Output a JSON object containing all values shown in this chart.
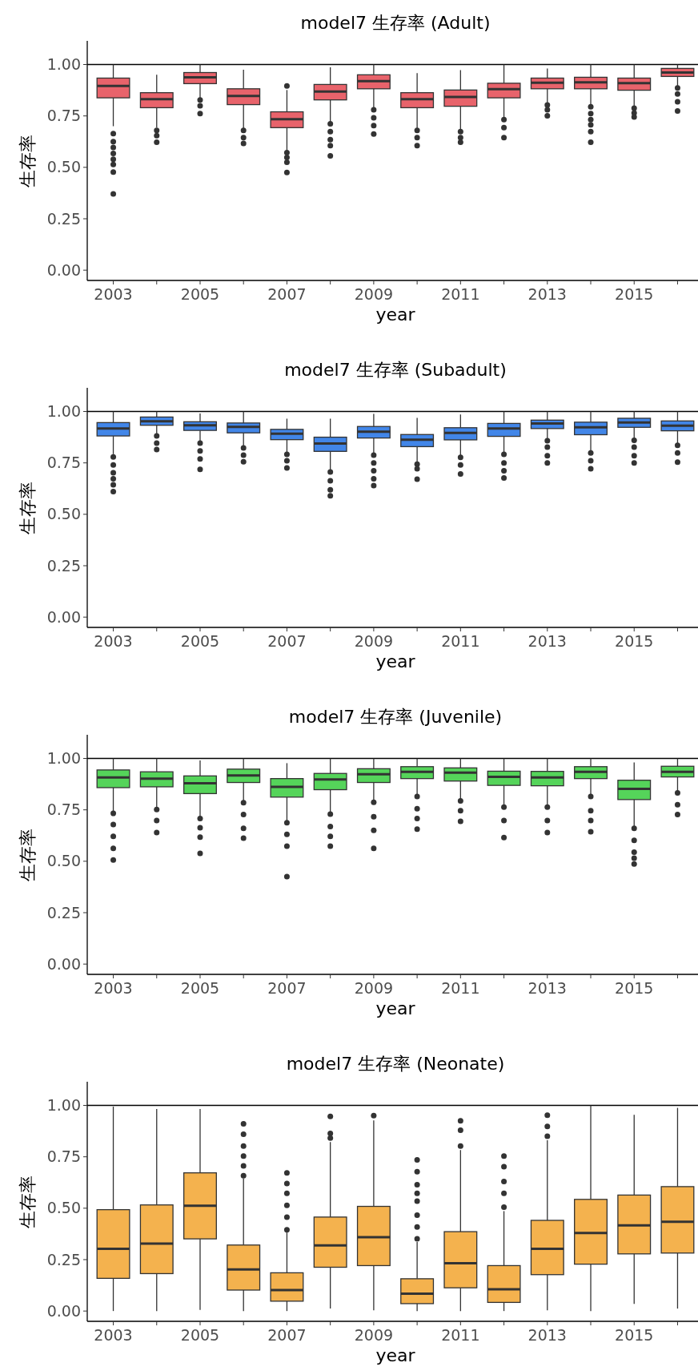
{
  "chart_data": [
    {
      "type": "box",
      "title": "model7 生存率 (Adult)",
      "xlabel": "year",
      "ylabel": "生存率",
      "categories": [
        "2003",
        null,
        "2005",
        null,
        "2007",
        null,
        "2009",
        null,
        "2011",
        null,
        "2013",
        null,
        "2015",
        null
      ],
      "color": "#e8636b",
      "ylim": [
        -0.05,
        1.115
      ],
      "yticks": [
        {
          "value": 0,
          "label": "0.00"
        },
        {
          "value": 0.25,
          "label": "0.25"
        },
        {
          "value": 0.5,
          "label": "0.50"
        },
        {
          "value": 0.75,
          "label": "0.75"
        },
        {
          "value": 1,
          "label": "1.00"
        }
      ],
      "grid": false,
      "ref_lines": [
        {
          "axis": "y",
          "value": 1,
          "color": "#000000"
        }
      ],
      "boxes": [
        {
          "low": 0.7,
          "q1": 0.838,
          "median": 0.896,
          "q3": 0.934,
          "high": 1.0,
          "outliers": [
            0.664,
            0.625,
            0.597,
            0.568,
            0.539,
            0.514,
            0.477,
            0.371
          ]
        },
        {
          "low": 0.693,
          "q1": 0.79,
          "median": 0.832,
          "q3": 0.863,
          "high": 0.95,
          "outliers": [
            0.68,
            0.654,
            0.622
          ]
        },
        {
          "low": 0.838,
          "q1": 0.907,
          "median": 0.938,
          "q3": 0.961,
          "high": 1.0,
          "outliers": [
            0.828,
            0.799,
            0.761
          ]
        },
        {
          "low": 0.687,
          "q1": 0.805,
          "median": 0.847,
          "q3": 0.882,
          "high": 0.975,
          "outliers": [
            0.68,
            0.645,
            0.616
          ]
        },
        {
          "low": 0.581,
          "q1": 0.693,
          "median": 0.734,
          "q3": 0.77,
          "high": 0.876,
          "outliers": [
            0.896,
            0.571,
            0.548,
            0.525,
            0.475
          ]
        },
        {
          "low": 0.722,
          "q1": 0.828,
          "median": 0.869,
          "q3": 0.903,
          "high": 0.986,
          "outliers": [
            0.712,
            0.674,
            0.635,
            0.606,
            0.556
          ]
        },
        {
          "low": 0.79,
          "q1": 0.882,
          "median": 0.919,
          "q3": 0.95,
          "high": 1.0,
          "outliers": [
            0.78,
            0.741,
            0.703,
            0.662
          ]
        },
        {
          "low": 0.687,
          "q1": 0.79,
          "median": 0.832,
          "q3": 0.863,
          "high": 0.958,
          "outliers": [
            0.68,
            0.645,
            0.606
          ]
        },
        {
          "low": 0.683,
          "q1": 0.797,
          "median": 0.842,
          "q3": 0.876,
          "high": 0.973,
          "outliers": [
            0.674,
            0.645,
            0.622
          ]
        },
        {
          "low": 0.736,
          "q1": 0.838,
          "median": 0.88,
          "q3": 0.909,
          "high": 1.0,
          "outliers": [
            0.732,
            0.693,
            0.645
          ]
        },
        {
          "low": 0.813,
          "q1": 0.882,
          "median": 0.911,
          "q3": 0.934,
          "high": 0.981,
          "outliers": [
            0.803,
            0.78,
            0.751
          ]
        },
        {
          "low": 0.805,
          "q1": 0.882,
          "median": 0.913,
          "q3": 0.938,
          "high": 1.0,
          "outliers": [
            0.795,
            0.761,
            0.732,
            0.707,
            0.674,
            0.622
          ]
        },
        {
          "low": 0.793,
          "q1": 0.875,
          "median": 0.909,
          "q3": 0.934,
          "high": 1.0,
          "outliers": [
            0.788,
            0.764,
            0.745
          ]
        },
        {
          "low": 0.896,
          "q1": 0.942,
          "median": 0.961,
          "q3": 0.981,
          "high": 1.0,
          "outliers": [
            0.886,
            0.857,
            0.819,
            0.774
          ]
        }
      ]
    },
    {
      "type": "box",
      "title": "model7 生存率 (Subadult)",
      "xlabel": "year",
      "ylabel": "生存率",
      "categories": [
        "2003",
        null,
        "2005",
        null,
        "2007",
        null,
        "2009",
        null,
        "2011",
        null,
        "2013",
        null,
        "2015",
        null
      ],
      "color": "#4286e8",
      "ylim": [
        -0.05,
        1.115
      ],
      "yticks": [
        {
          "value": 0,
          "label": "0.00"
        },
        {
          "value": 0.25,
          "label": "0.25"
        },
        {
          "value": 0.5,
          "label": "0.50"
        },
        {
          "value": 0.75,
          "label": "0.75"
        },
        {
          "value": 1,
          "label": "1.00"
        }
      ],
      "grid": false,
      "ref_lines": [
        {
          "axis": "y",
          "value": 1,
          "color": "#000000"
        }
      ],
      "boxes": [
        {
          "low": 0.792,
          "q1": 0.881,
          "median": 0.917,
          "q3": 0.946,
          "high": 1.0,
          "outliers": [
            0.779,
            0.74,
            0.702,
            0.673,
            0.644,
            0.61
          ]
        },
        {
          "low": 0.888,
          "q1": 0.933,
          "median": 0.952,
          "q3": 0.973,
          "high": 1.0,
          "outliers": [
            0.881,
            0.846,
            0.815
          ]
        },
        {
          "low": 0.856,
          "q1": 0.908,
          "median": 0.933,
          "q3": 0.95,
          "high": 0.99,
          "outliers": [
            0.846,
            0.808,
            0.769,
            0.719
          ]
        },
        {
          "low": 0.831,
          "q1": 0.896,
          "median": 0.925,
          "q3": 0.944,
          "high": 1.0,
          "outliers": [
            0.823,
            0.788,
            0.756
          ]
        },
        {
          "low": 0.798,
          "q1": 0.863,
          "median": 0.892,
          "q3": 0.913,
          "high": 0.965,
          "outliers": [
            0.792,
            0.76,
            0.725
          ]
        },
        {
          "low": 0.715,
          "q1": 0.806,
          "median": 0.844,
          "q3": 0.875,
          "high": 0.965,
          "outliers": [
            0.706,
            0.663,
            0.619,
            0.59
          ]
        },
        {
          "low": 0.796,
          "q1": 0.871,
          "median": 0.902,
          "q3": 0.927,
          "high": 0.988,
          "outliers": [
            0.788,
            0.75,
            0.712,
            0.673,
            0.64
          ]
        },
        {
          "low": 0.75,
          "q1": 0.829,
          "median": 0.863,
          "q3": 0.888,
          "high": 0.969,
          "outliers": [
            0.744,
            0.721,
            0.671
          ]
        },
        {
          "low": 0.783,
          "q1": 0.862,
          "median": 0.896,
          "q3": 0.921,
          "high": 0.985,
          "outliers": [
            0.777,
            0.74,
            0.696
          ]
        },
        {
          "low": 0.796,
          "q1": 0.879,
          "median": 0.917,
          "q3": 0.942,
          "high": 1.0,
          "outliers": [
            0.792,
            0.75,
            0.712,
            0.677
          ]
        },
        {
          "low": 0.863,
          "q1": 0.917,
          "median": 0.942,
          "q3": 0.958,
          "high": 1.0,
          "outliers": [
            0.858,
            0.827,
            0.785,
            0.75
          ]
        },
        {
          "low": 0.804,
          "q1": 0.887,
          "median": 0.923,
          "q3": 0.948,
          "high": 1.0,
          "outliers": [
            0.798,
            0.76,
            0.721
          ]
        },
        {
          "low": 0.865,
          "q1": 0.923,
          "median": 0.946,
          "q3": 0.967,
          "high": 1.0,
          "outliers": [
            0.86,
            0.827,
            0.785,
            0.75
          ]
        },
        {
          "low": 0.84,
          "q1": 0.906,
          "median": 0.931,
          "q3": 0.954,
          "high": 1.0,
          "outliers": [
            0.835,
            0.798,
            0.754
          ]
        }
      ]
    },
    {
      "type": "box",
      "title": "model7 生存率 (Juvenile)",
      "xlabel": "year",
      "ylabel": "生存率",
      "categories": [
        "2003",
        null,
        "2005",
        null,
        "2007",
        null,
        "2009",
        null,
        "2011",
        null,
        "2013",
        null,
        "2015",
        null
      ],
      "color": "#55d45a",
      "ylim": [
        -0.05,
        1.115
      ],
      "yticks": [
        {
          "value": 0,
          "label": "0.00"
        },
        {
          "value": 0.25,
          "label": "0.25"
        },
        {
          "value": 0.5,
          "label": "0.50"
        },
        {
          "value": 0.75,
          "label": "0.75"
        },
        {
          "value": 1,
          "label": "1.00"
        }
      ],
      "grid": false,
      "ref_lines": [
        {
          "axis": "y",
          "value": 1,
          "color": "#000000"
        }
      ],
      "boxes": [
        {
          "low": 0.74,
          "q1": 0.858,
          "median": 0.908,
          "q3": 0.944,
          "high": 1.0,
          "outliers": [
            0.733,
            0.679,
            0.621,
            0.563,
            0.506
          ]
        },
        {
          "low": 0.76,
          "q1": 0.862,
          "median": 0.902,
          "q3": 0.935,
          "high": 1.0,
          "outliers": [
            0.752,
            0.698,
            0.64
          ]
        },
        {
          "low": 0.713,
          "q1": 0.829,
          "median": 0.879,
          "q3": 0.915,
          "high": 0.99,
          "outliers": [
            0.708,
            0.663,
            0.617,
            0.538
          ]
        },
        {
          "low": 0.79,
          "q1": 0.883,
          "median": 0.917,
          "q3": 0.948,
          "high": 1.0,
          "outliers": [
            0.785,
            0.727,
            0.66,
            0.612
          ]
        },
        {
          "low": 0.694,
          "q1": 0.812,
          "median": 0.862,
          "q3": 0.902,
          "high": 0.977,
          "outliers": [
            0.687,
            0.631,
            0.573,
            0.425
          ]
        },
        {
          "low": 0.737,
          "q1": 0.848,
          "median": 0.898,
          "q3": 0.927,
          "high": 1.0,
          "outliers": [
            0.729,
            0.669,
            0.621,
            0.573
          ]
        },
        {
          "low": 0.794,
          "q1": 0.883,
          "median": 0.923,
          "q3": 0.95,
          "high": 1.0,
          "outliers": [
            0.787,
            0.717,
            0.65,
            0.563
          ]
        },
        {
          "low": 0.821,
          "q1": 0.902,
          "median": 0.935,
          "q3": 0.96,
          "high": 1.0,
          "outliers": [
            0.815,
            0.756,
            0.708,
            0.656
          ]
        },
        {
          "low": 0.802,
          "q1": 0.89,
          "median": 0.931,
          "q3": 0.954,
          "high": 1.0,
          "outliers": [
            0.794,
            0.746,
            0.694
          ]
        },
        {
          "low": 0.771,
          "q1": 0.869,
          "median": 0.91,
          "q3": 0.938,
          "high": 1.0,
          "outliers": [
            0.763,
            0.698,
            0.615
          ]
        },
        {
          "low": 0.771,
          "q1": 0.867,
          "median": 0.908,
          "q3": 0.937,
          "high": 1.0,
          "outliers": [
            0.763,
            0.698,
            0.64
          ]
        },
        {
          "low": 0.821,
          "q1": 0.902,
          "median": 0.935,
          "q3": 0.96,
          "high": 1.0,
          "outliers": [
            0.815,
            0.746,
            0.698,
            0.644
          ]
        },
        {
          "low": 0.667,
          "q1": 0.8,
          "median": 0.852,
          "q3": 0.894,
          "high": 0.981,
          "outliers": [
            0.66,
            0.602,
            0.544,
            0.515,
            0.487
          ]
        },
        {
          "low": 0.84,
          "q1": 0.91,
          "median": 0.935,
          "q3": 0.962,
          "high": 1.0,
          "outliers": [
            0.833,
            0.775,
            0.727
          ]
        }
      ]
    },
    {
      "type": "box",
      "title": "model7 生存率 (Neonate)",
      "xlabel": "year",
      "ylabel": "生存率",
      "categories": [
        "2003",
        null,
        "2005",
        null,
        "2007",
        null,
        "2009",
        null,
        "2011",
        null,
        "2013",
        null,
        "2015",
        null
      ],
      "color": "#f4b24e",
      "ylim": [
        -0.05,
        1.115
      ],
      "yticks": [
        {
          "value": 0,
          "label": "0.00"
        },
        {
          "value": 0.25,
          "label": "0.25"
        },
        {
          "value": 0.5,
          "label": "0.50"
        },
        {
          "value": 0.75,
          "label": "0.75"
        },
        {
          "value": 1,
          "label": "1.00"
        }
      ],
      "grid": false,
      "ref_lines": [
        {
          "axis": "y",
          "value": 1,
          "color": "#000000"
        }
      ],
      "boxes": [
        {
          "low": 0.0,
          "q1": 0.159,
          "median": 0.303,
          "q3": 0.493,
          "high": 0.994
        },
        {
          "low": 0.0,
          "q1": 0.182,
          "median": 0.328,
          "q3": 0.516,
          "high": 0.983
        },
        {
          "low": 0.006,
          "q1": 0.351,
          "median": 0.512,
          "q3": 0.672,
          "high": 0.983
        },
        {
          "low": 0.0,
          "q1": 0.102,
          "median": 0.202,
          "q3": 0.321,
          "high": 0.645,
          "outliers": [
            0.658,
            0.706,
            0.754,
            0.802,
            0.86,
            0.91
          ]
        },
        {
          "low": 0.0,
          "q1": 0.048,
          "median": 0.102,
          "q3": 0.186,
          "high": 0.384,
          "outliers": [
            0.395,
            0.457,
            0.514,
            0.572,
            0.62,
            0.672
          ]
        },
        {
          "low": 0.012,
          "q1": 0.213,
          "median": 0.319,
          "q3": 0.457,
          "high": 0.822,
          "outliers": [
            0.841,
            0.864,
            0.946
          ]
        },
        {
          "low": 0.004,
          "q1": 0.221,
          "median": 0.359,
          "q3": 0.509,
          "high": 0.927,
          "outliers": [
            0.95
          ]
        },
        {
          "low": 0.0,
          "q1": 0.036,
          "median": 0.084,
          "q3": 0.157,
          "high": 0.336,
          "outliers": [
            0.351,
            0.409,
            0.466,
            0.534,
            0.572,
            0.614,
            0.678,
            0.735
          ]
        },
        {
          "low": 0.0,
          "q1": 0.113,
          "median": 0.232,
          "q3": 0.386,
          "high": 0.783,
          "outliers": [
            0.802,
            0.879,
            0.925
          ]
        },
        {
          "low": 0.0,
          "q1": 0.042,
          "median": 0.106,
          "q3": 0.221,
          "high": 0.486,
          "outliers": [
            0.505,
            0.572,
            0.63,
            0.702,
            0.754
          ]
        },
        {
          "low": 0.004,
          "q1": 0.177,
          "median": 0.303,
          "q3": 0.441,
          "high": 0.831,
          "outliers": [
            0.85,
            0.898,
            0.952
          ]
        },
        {
          "low": 0.0,
          "q1": 0.228,
          "median": 0.38,
          "q3": 0.543,
          "high": 1.0
        },
        {
          "low": 0.035,
          "q1": 0.278,
          "median": 0.417,
          "q3": 0.564,
          "high": 0.954
        },
        {
          "low": 0.012,
          "q1": 0.282,
          "median": 0.434,
          "q3": 0.605,
          "high": 0.988
        }
      ]
    }
  ]
}
